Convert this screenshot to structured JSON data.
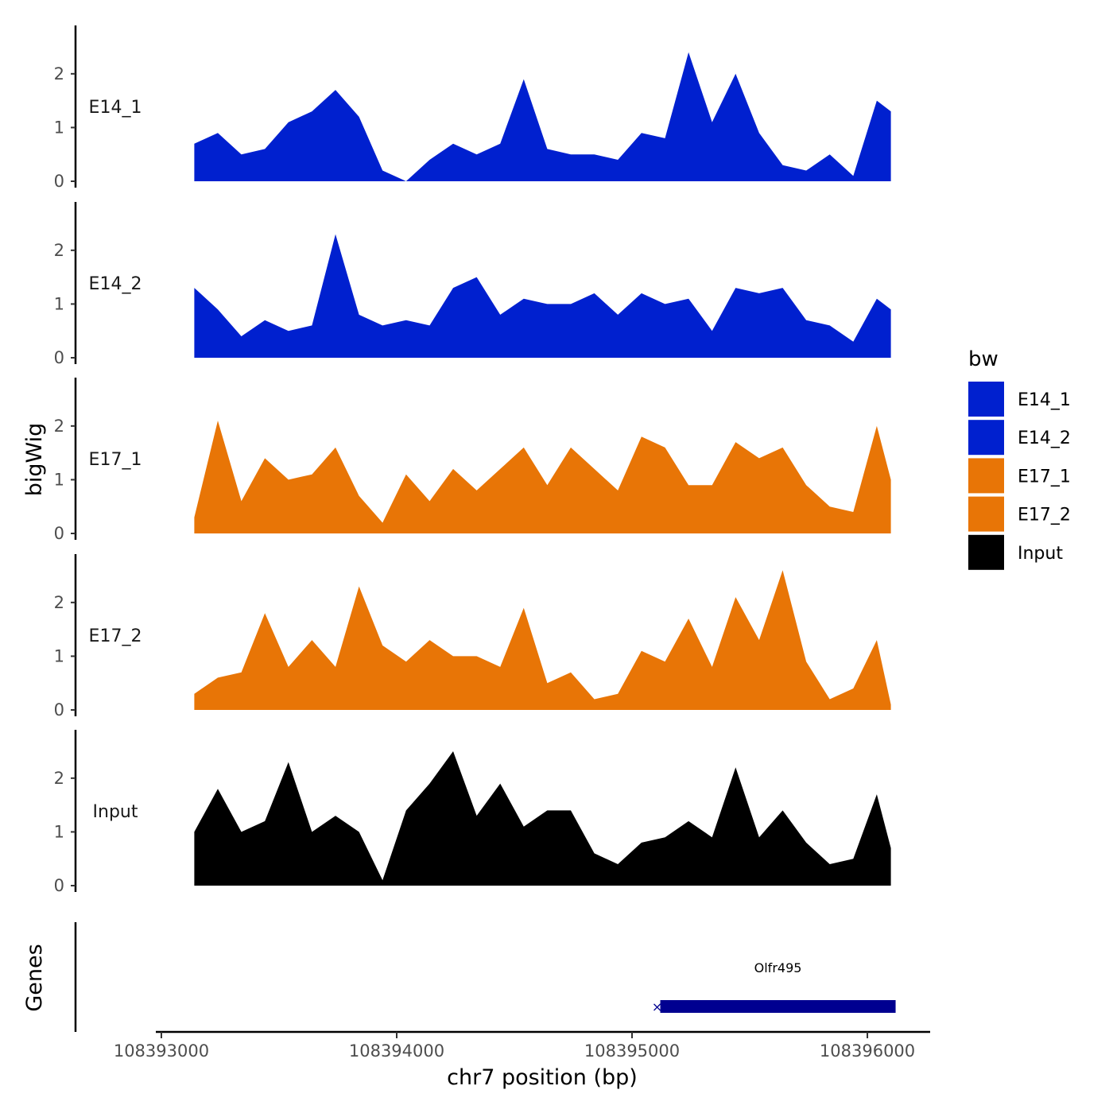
{
  "chart_data": {
    "type": "area",
    "title": "",
    "ylabel_tracks": "bigWig",
    "ylabel_genes": "Genes",
    "xlabel": "chr7 position (bp)",
    "xlim": [
      108392990,
      108396260
    ],
    "ylim": [
      0,
      2.9
    ],
    "y_ticks": [
      0,
      1,
      2
    ],
    "y_tick_labels": [
      "0",
      "1",
      "2"
    ],
    "x_ticks": [
      108393000,
      108394000,
      108395000,
      108396000
    ],
    "x_tick_labels": [
      "108393000",
      "108394000",
      "108395000",
      "108396000"
    ],
    "legend": {
      "title": "bw",
      "position": "right",
      "entries": [
        {
          "label": "E14_1",
          "color": "#0020CF"
        },
        {
          "label": "E14_2",
          "color": "#0020CF"
        },
        {
          "label": "E17_1",
          "color": "#E87506"
        },
        {
          "label": "E17_2",
          "color": "#E87506"
        },
        {
          "label": "Input",
          "color": "#000000"
        }
      ]
    },
    "x": [
      108393140,
      108393240,
      108393340,
      108393440,
      108393540,
      108393640,
      108393740,
      108393840,
      108393940,
      108394040,
      108394140,
      108394240,
      108394340,
      108394440,
      108394540,
      108394640,
      108394740,
      108394840,
      108394940,
      108395040,
      108395140,
      108395240,
      108395340,
      108395440,
      108395540,
      108395640,
      108395740,
      108395840,
      108395940,
      108396040,
      108396100
    ],
    "series": [
      {
        "name": "E14_1",
        "color": "#0020CF",
        "values": [
          0.7,
          0.9,
          0.5,
          0.6,
          1.1,
          1.3,
          1.7,
          1.2,
          0.2,
          0,
          0.4,
          0.7,
          0.5,
          0.7,
          1.9,
          0.6,
          0.5,
          0.5,
          0.4,
          0.9,
          0.8,
          2.4,
          1.1,
          2.0,
          0.9,
          0.3,
          0.2,
          0.5,
          0.1,
          1.5,
          1.3
        ]
      },
      {
        "name": "E14_2",
        "color": "#0020CF",
        "values": [
          1.3,
          0.9,
          0.4,
          0.7,
          0.5,
          0.6,
          2.3,
          0.8,
          0.6,
          0.7,
          0.6,
          1.3,
          1.5,
          0.8,
          1.1,
          1.0,
          1.0,
          1.2,
          0.8,
          1.2,
          1.0,
          1.1,
          0.5,
          1.3,
          1.2,
          1.3,
          0.7,
          0.6,
          0.3,
          1.1,
          0.9
        ]
      },
      {
        "name": "E17_1",
        "color": "#E87506",
        "values": [
          0.3,
          2.1,
          0.6,
          1.4,
          1.0,
          1.1,
          1.6,
          0.7,
          0.2,
          1.1,
          0.6,
          1.2,
          0.8,
          1.2,
          1.6,
          0.9,
          1.6,
          1.2,
          0.8,
          1.8,
          1.6,
          0.9,
          0.9,
          1.7,
          1.4,
          1.6,
          0.9,
          0.5,
          0.4,
          2.0,
          1.0
        ]
      },
      {
        "name": "E17_2",
        "color": "#E87506",
        "values": [
          0.3,
          0.6,
          0.7,
          1.8,
          0.8,
          1.3,
          0.8,
          2.3,
          1.2,
          0.9,
          1.3,
          1.0,
          1.0,
          0.8,
          1.9,
          0.5,
          0.7,
          0.2,
          0.3,
          1.1,
          0.9,
          1.7,
          0.8,
          2.1,
          1.3,
          2.6,
          0.9,
          0.2,
          0.4,
          1.3,
          0.1
        ]
      },
      {
        "name": "Input",
        "color": "#000000",
        "values": [
          1.0,
          1.8,
          1.0,
          1.2,
          2.3,
          1.0,
          1.3,
          1.0,
          0.1,
          1.4,
          1.9,
          2.5,
          1.3,
          1.9,
          1.1,
          1.4,
          1.4,
          0.6,
          0.4,
          0.8,
          0.9,
          1.2,
          0.9,
          2.2,
          0.9,
          1.4,
          0.8,
          0.4,
          0.5,
          1.7,
          0.7
        ]
      }
    ],
    "genes": [
      {
        "name": "Olfr495",
        "start": 108395120,
        "end": 108396120,
        "strand": "+",
        "color": "#000090"
      }
    ]
  }
}
